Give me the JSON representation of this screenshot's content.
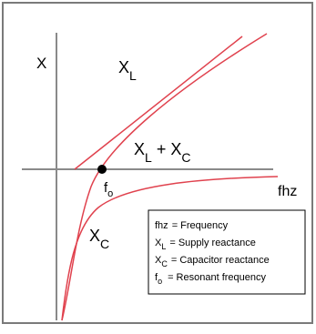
{
  "diagram": {
    "y_axis_label": "X",
    "x_axis_label": "fhz",
    "curve_labels": {
      "xl": {
        "main": "X",
        "sub": "L"
      },
      "sum": {
        "a": "X",
        "a_sub": "L",
        "op": "+",
        "b": "X",
        "b_sub": "C"
      },
      "xc": {
        "main": "X",
        "sub": "C"
      }
    },
    "resonance_label": {
      "main": "f",
      "sub": "o"
    },
    "legend": [
      {
        "symbol": "fhz",
        "sub": "",
        "text": "= Frequency"
      },
      {
        "symbol": "X",
        "sub": "L",
        "text": "= Supply reactance"
      },
      {
        "symbol": "X",
        "sub": "C",
        "text": "= Capacitor reactance"
      },
      {
        "symbol": "f",
        "sub": "o",
        "text": "= Resonant frequency"
      }
    ],
    "colors": {
      "axes": "#000000",
      "curves": "#e0424e",
      "frame": "#666666",
      "marker": "#000000"
    }
  }
}
